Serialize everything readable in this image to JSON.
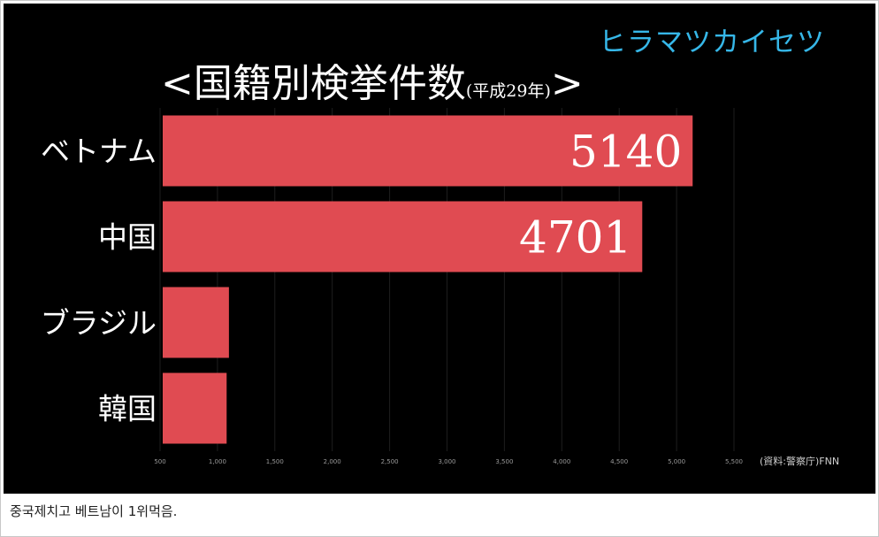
{
  "brand": "ヒラマツカイセツ",
  "caption": "중국제치고 베트남이 1위먹음.",
  "chart_data": {
    "type": "bar",
    "orientation": "horizontal",
    "title_open": "<",
    "title": "国籍別検挙件数",
    "subtitle": "(平成29年)",
    "title_close": ">",
    "categories": [
      "ベトナム",
      "中国",
      "ブラジル",
      "韓国"
    ],
    "values": [
      5140,
      4701,
      1100,
      1080
    ],
    "data_labels": [
      "5140",
      "4701",
      "",
      ""
    ],
    "xlim": [
      500,
      5500
    ],
    "x_ticks": [
      500,
      1000,
      1500,
      2000,
      2500,
      3000,
      3500,
      4000,
      4500,
      5000,
      5500
    ],
    "x_tick_labels": [
      "500",
      "1,000",
      "1,500",
      "2,000",
      "2,500",
      "3,000",
      "3,500",
      "4,000",
      "4,500",
      "5,000",
      "5,500"
    ],
    "grid": true,
    "source": "(資料:警察庁)FNN",
    "colors": {
      "bar": "#e04b52",
      "background": "#000000",
      "text": "#ffffff",
      "brand": "#36b7e8"
    }
  }
}
